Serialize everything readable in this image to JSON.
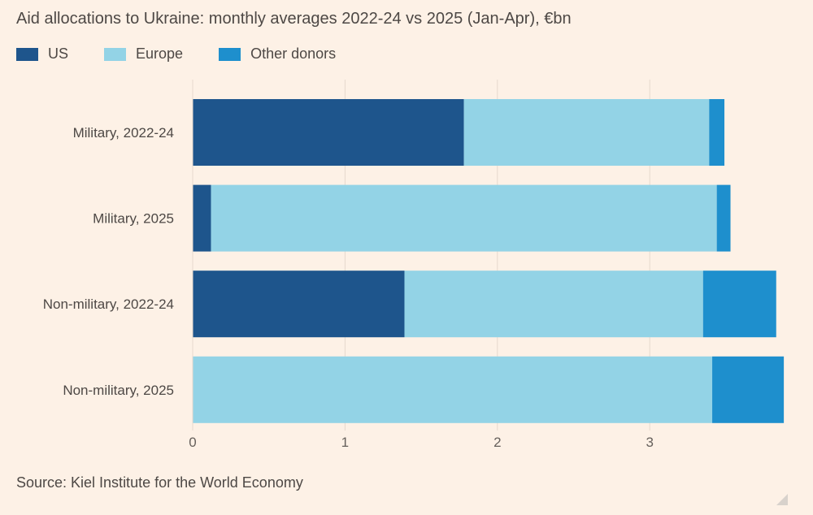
{
  "title": "Aid allocations to Ukraine: monthly averages 2022-24 vs 2025 (Jan-Apr), €bn",
  "legend": [
    {
      "label": "US",
      "color": "#1e558c"
    },
    {
      "label": "Europe",
      "color": "#93d3e6"
    },
    {
      "label": "Other donors",
      "color": "#1e8fcd"
    }
  ],
  "source": "Source: Kiel Institute for the World Economy",
  "chart_data": {
    "type": "bar",
    "orientation": "horizontal",
    "stacked": true,
    "title": "Aid allocations to Ukraine: monthly averages 2022-24 vs 2025 (Jan-Apr), €bn",
    "categories": [
      "Military, 2022-24",
      "Military, 2025",
      "Non-military, 2022-24",
      "Non-military, 2025"
    ],
    "series": [
      {
        "name": "US",
        "color": "#1e558c",
        "values": [
          1.78,
          0.12,
          1.39,
          0.0
        ]
      },
      {
        "name": "Europe",
        "color": "#93d3e6",
        "values": [
          1.61,
          3.32,
          1.96,
          3.41
        ]
      },
      {
        "name": "Other donors",
        "color": "#1e8fcd",
        "values": [
          0.1,
          0.09,
          0.48,
          0.47
        ]
      }
    ],
    "xticks": [
      "0",
      "1",
      "2",
      "3"
    ],
    "xlim": [
      0,
      3.88
    ],
    "xlabel": "",
    "ylabel": "",
    "grid": true,
    "legend_position": "top-left"
  }
}
